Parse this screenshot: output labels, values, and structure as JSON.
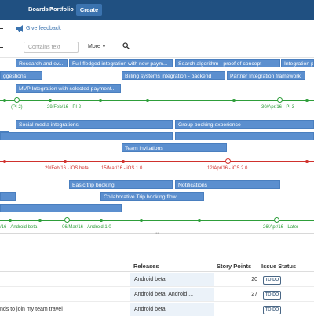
{
  "nav": {
    "items": [
      {
        "label": "Boards"
      },
      {
        "label": "Portfolio"
      }
    ],
    "create_label": "Create"
  },
  "feedback": {
    "label": "Give feedback"
  },
  "filter": {
    "placeholder": "Contains text",
    "more_label": "More"
  },
  "bars": [
    {
      "label": "Research and ev..."
    },
    {
      "label": "Full-fledged integration with new paym..."
    },
    {
      "label": "Search algorithm - proof of concept"
    },
    {
      "label": "Integration p"
    },
    {
      "label": "ggestions"
    },
    {
      "label": "Billing systems integration - backend"
    },
    {
      "label": "Partner Integration framework"
    },
    {
      "label": "MVP Integration with selected payment..."
    },
    {
      "label": ""
    },
    {
      "label": "Social media integrations"
    },
    {
      "label": "Group booking experience"
    },
    {
      "label": ""
    },
    {
      "label": ""
    },
    {
      "label": "Team invitations"
    },
    {
      "label": "Basic trip booking"
    },
    {
      "label": "Notifications"
    },
    {
      "label": ""
    },
    {
      "label": "Collaborative Trip booking flow"
    },
    {
      "label": ""
    }
  ],
  "timelines": [
    {
      "color": "#2e9e3a",
      "labels": [
        "(PI 2)",
        "29/Feb/16 - PI 2",
        "30/Apr/16 - PI 3"
      ]
    },
    {
      "color": "#d0312d",
      "labels": [
        "29/Feb/16 - iOS beta",
        "15/Mar/16 - iOS 1.0",
        "12/Apr/16 - iOS 2.0"
      ]
    },
    {
      "color": "#2e9e3a",
      "labels": [
        "/16 - Android beta",
        "06/Mar/16 - Android 1.0",
        "26/Apr/16 - Later"
      ]
    }
  ],
  "table": {
    "headers": {
      "releases": "Releases",
      "story_points": "Story Points",
      "issue_status": "Issue Status"
    },
    "rows": [
      {
        "summary": "",
        "releases": "Android beta",
        "points": "20",
        "status": "TO DO"
      },
      {
        "summary": "",
        "releases": "Android beta, Android ...",
        "points": "27",
        "status": "TO DO"
      },
      {
        "summary": "nds to join my team travel",
        "releases": "Android beta",
        "points": "",
        "status": "TO DO"
      }
    ]
  },
  "colors": {
    "nav_bg": "#205081",
    "bar_bg": "#5b8fcf",
    "green": "#2e9e3a",
    "red": "#d0312d"
  }
}
